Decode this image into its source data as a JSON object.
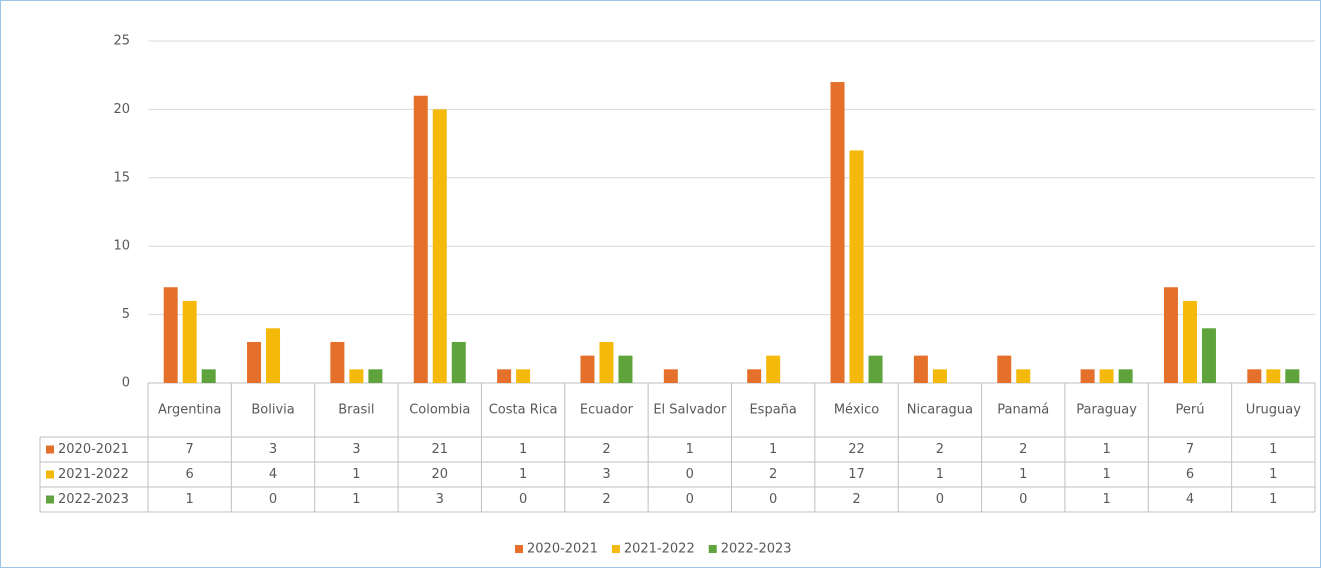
{
  "chart_data": {
    "type": "bar",
    "categories": [
      "Argentina",
      "Bolivia",
      "Brasil",
      "Colombia",
      "Costa Rica",
      "Ecuador",
      "El Salvador",
      "España",
      "México",
      "Nicaragua",
      "Panamá",
      "Paraguay",
      "Perú",
      "Uruguay"
    ],
    "series": [
      {
        "name": "2020-2021",
        "color": "#e5702b",
        "values": [
          7,
          3,
          3,
          21,
          1,
          2,
          1,
          1,
          22,
          2,
          2,
          1,
          7,
          1
        ]
      },
      {
        "name": "2021-2022",
        "color": "#f4b90b",
        "values": [
          6,
          4,
          1,
          20,
          1,
          3,
          0,
          2,
          17,
          1,
          1,
          1,
          6,
          1
        ]
      },
      {
        "name": "2022-2023",
        "color": "#5ea33b",
        "values": [
          1,
          0,
          1,
          3,
          0,
          2,
          0,
          0,
          2,
          0,
          0,
          1,
          4,
          1
        ]
      }
    ],
    "ylim": [
      0,
      25
    ],
    "yticks": [
      0,
      5,
      10,
      15,
      20,
      25
    ],
    "grid": true,
    "legend": "bottom"
  }
}
